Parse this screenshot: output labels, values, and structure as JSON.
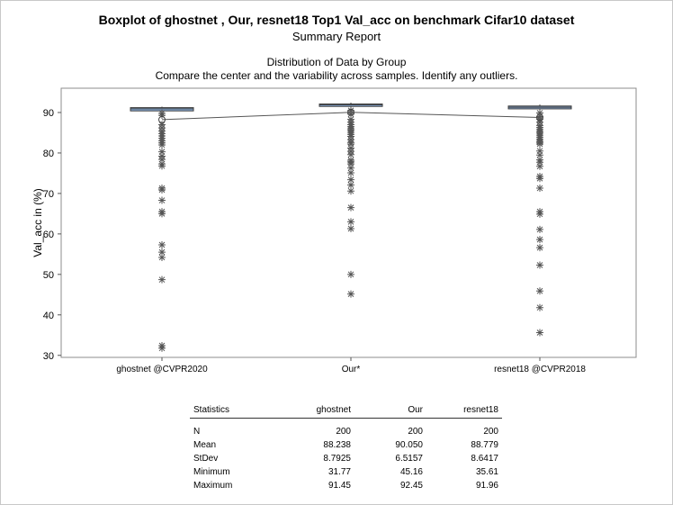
{
  "titles": {
    "main": "Boxplot of ghostnet , Our, resnet18 Top1 Val_acc on benchmark Cifar10 dataset",
    "sub": "Summary Report",
    "dist": "Distribution of Data by Group",
    "dist_sub": "Compare the center and the variability across samples. Identify any outliers."
  },
  "colors": {
    "box": "#8aaedc",
    "box_edge": "#3c3c3c",
    "outlier": "#555555",
    "grid": "#cfcfcf"
  },
  "chart_data": {
    "type": "boxplot",
    "ylabel": "Val_acc in (%)",
    "ylim": [
      29.5,
      96
    ],
    "yticks": [
      30,
      40,
      50,
      60,
      70,
      80,
      90
    ],
    "categories": [
      "ghostnet @CVPR2020",
      "Our*",
      "resnet18 @CVPR2018"
    ],
    "groups": [
      {
        "name": "ghostnet",
        "mean": 88.238,
        "box": {
          "whisker_low": 90.2,
          "q1": 90.4,
          "median": 90.9,
          "q3": 91.2,
          "whisker_high": 91.45
        },
        "outliers": [
          89.8,
          89.3,
          87.0,
          86.2,
          85.4,
          84.8,
          84.2,
          83.6,
          83.0,
          82.5,
          82.0,
          80.3,
          79.2,
          78.4,
          77.3,
          76.8,
          71.3,
          70.9,
          68.3,
          65.5,
          65.0,
          57.3,
          55.5,
          54.2,
          48.7,
          32.4,
          31.77
        ]
      },
      {
        "name": "Our",
        "mean": 90.05,
        "box": {
          "whisker_low": 91.1,
          "q1": 91.5,
          "median": 91.9,
          "q3": 92.1,
          "whisker_high": 92.45
        },
        "outliers": [
          90.5,
          89.6,
          88.3,
          87.6,
          87.0,
          86.5,
          86.0,
          85.6,
          85.1,
          84.6,
          84.1,
          83.3,
          82.6,
          82.2,
          81.2,
          80.4,
          79.6,
          78.2,
          77.8,
          77.3,
          76.3,
          75.1,
          73.4,
          72.1,
          70.6,
          66.5,
          63.0,
          61.3,
          50.0,
          45.16
        ]
      },
      {
        "name": "resnet18",
        "mean": 88.779,
        "box": {
          "whisker_low": 90.5,
          "q1": 90.9,
          "median": 91.3,
          "q3": 91.6,
          "whisker_high": 91.96
        },
        "outliers": [
          89.9,
          89.0,
          88.3,
          87.6,
          86.8,
          86.3,
          85.8,
          85.3,
          84.9,
          84.4,
          83.9,
          83.4,
          82.9,
          82.6,
          82.2,
          80.5,
          79.5,
          78.3,
          77.7,
          76.7,
          74.2,
          73.7,
          71.3,
          65.5,
          64.9,
          61.1,
          58.6,
          56.6,
          52.3,
          45.9,
          41.8,
          35.61
        ]
      }
    ]
  },
  "stats_table": {
    "headers": [
      "Statistics",
      "ghostnet",
      "Our",
      "resnet18"
    ],
    "rows": [
      [
        "N",
        "200",
        "200",
        "200"
      ],
      [
        "Mean",
        "88.238",
        "90.050",
        "88.779"
      ],
      [
        "StDev",
        "8.7925",
        "6.5157",
        "8.6417"
      ],
      [
        "Minimum",
        "31.77",
        "45.16",
        "35.61"
      ],
      [
        "Maximum",
        "91.45",
        "92.45",
        "91.96"
      ]
    ]
  }
}
